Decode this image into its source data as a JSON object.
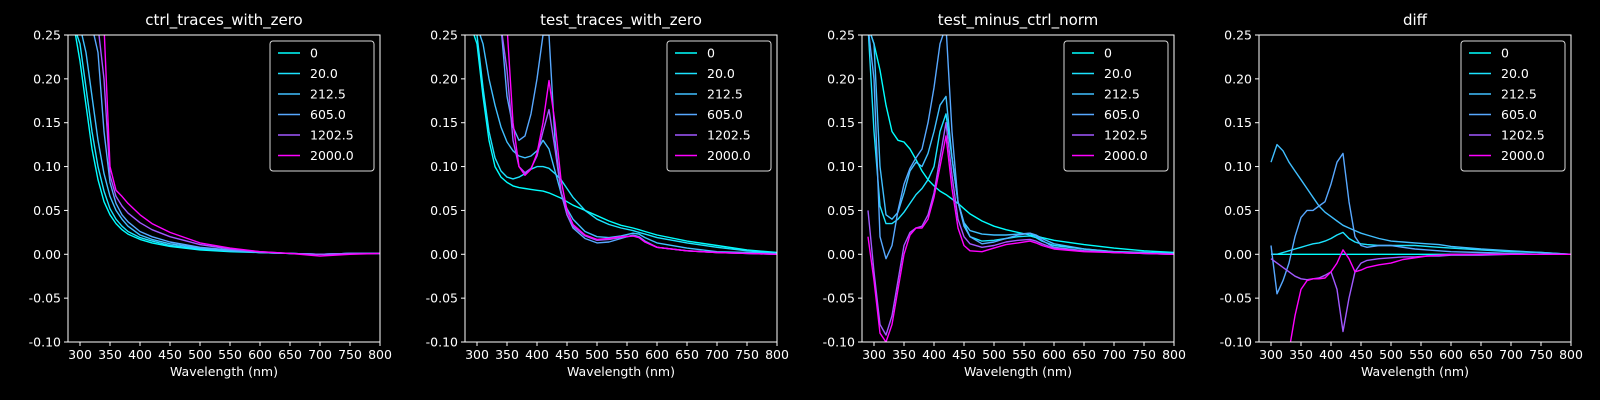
{
  "figure": {
    "background": "#000000",
    "foreground": "#ffffff"
  },
  "legend_entries": [
    "0",
    "20.0",
    "212.5",
    "605.0",
    "1202.5",
    "2000.0"
  ],
  "series_colors": [
    "#00ffff",
    "#1ce3ff",
    "#40bfff",
    "#57a8ff",
    "#a159ff",
    "#ff00ff"
  ],
  "chart_data": [
    {
      "type": "line",
      "title": "ctrl_traces_with_zero",
      "xlabel": "Wavelength (nm)",
      "ylabel": "",
      "xlim": [
        280,
        800
      ],
      "ylim": [
        -0.1,
        0.25
      ],
      "xticks": [
        300,
        350,
        400,
        450,
        500,
        550,
        600,
        650,
        700,
        750,
        800
      ],
      "yticks": [
        -0.1,
        -0.05,
        0.0,
        0.05,
        0.1,
        0.15,
        0.2,
        0.25
      ],
      "grid": false,
      "legend_position": "top-right",
      "x": [
        290,
        300,
        310,
        320,
        330,
        340,
        350,
        360,
        370,
        380,
        400,
        420,
        450,
        500,
        550,
        600,
        650,
        700,
        750,
        800
      ],
      "series": [
        {
          "name": "0",
          "values": [
            0.26,
            0.22,
            0.17,
            0.12,
            0.085,
            0.06,
            0.045,
            0.035,
            0.028,
            0.023,
            0.017,
            0.013,
            0.009,
            0.005,
            0.003,
            0.002,
            0.001,
            0.0,
            0.001,
            0.001
          ]
        },
        {
          "name": "20.0",
          "values": [
            0.26,
            0.24,
            0.19,
            0.14,
            0.1,
            0.072,
            0.052,
            0.04,
            0.032,
            0.026,
            0.019,
            0.015,
            0.01,
            0.006,
            0.004,
            0.002,
            0.001,
            0.0,
            0.001,
            0.001
          ]
        },
        {
          "name": "212.5",
          "values": [
            0.26,
            0.26,
            0.23,
            0.18,
            0.13,
            0.092,
            0.066,
            0.05,
            0.04,
            0.032,
            0.022,
            0.017,
            0.012,
            0.007,
            0.004,
            0.002,
            0.001,
            0.0,
            0.001,
            0.001
          ]
        },
        {
          "name": "605.0",
          "values": [
            0.26,
            0.26,
            0.26,
            0.26,
            0.23,
            0.14,
            0.082,
            0.058,
            0.045,
            0.037,
            0.026,
            0.02,
            0.014,
            0.008,
            0.005,
            0.002,
            0.001,
            0.0,
            0.001,
            0.001
          ]
        },
        {
          "name": "1202.5",
          "values": [
            0.26,
            0.26,
            0.26,
            0.26,
            0.26,
            0.2,
            0.09,
            0.066,
            0.055,
            0.047,
            0.036,
            0.028,
            0.02,
            0.011,
            0.006,
            0.003,
            0.001,
            0.0,
            0.001,
            0.001
          ]
        },
        {
          "name": "2000.0",
          "values": [
            0.26,
            0.26,
            0.26,
            0.26,
            0.26,
            0.26,
            0.1,
            0.073,
            0.066,
            0.058,
            0.045,
            0.035,
            0.025,
            0.013,
            0.007,
            0.003,
            0.001,
            -0.002,
            0.0,
            0.001
          ]
        }
      ]
    },
    {
      "type": "line",
      "title": "test_traces_with_zero",
      "xlabel": "Wavelength (nm)",
      "ylabel": "",
      "xlim": [
        280,
        800
      ],
      "ylim": [
        -0.1,
        0.25
      ],
      "xticks": [
        300,
        350,
        400,
        450,
        500,
        550,
        600,
        650,
        700,
        750,
        800
      ],
      "yticks": [
        -0.1,
        -0.05,
        0.0,
        0.05,
        0.1,
        0.15,
        0.2,
        0.25
      ],
      "grid": false,
      "legend_position": "top-right",
      "x": [
        290,
        300,
        310,
        320,
        330,
        340,
        350,
        360,
        370,
        380,
        390,
        400,
        410,
        420,
        430,
        440,
        450,
        460,
        480,
        500,
        520,
        540,
        560,
        570,
        580,
        600,
        650,
        700,
        750,
        800
      ],
      "series": [
        {
          "name": "0",
          "values": [
            0.26,
            0.24,
            0.18,
            0.13,
            0.1,
            0.088,
            0.082,
            0.078,
            0.076,
            0.075,
            0.074,
            0.073,
            0.072,
            0.07,
            0.067,
            0.064,
            0.06,
            0.056,
            0.05,
            0.044,
            0.038,
            0.033,
            0.03,
            0.028,
            0.026,
            0.022,
            0.015,
            0.01,
            0.005,
            0.002
          ]
        },
        {
          "name": "20.0",
          "values": [
            0.26,
            0.25,
            0.19,
            0.14,
            0.11,
            0.095,
            0.088,
            0.086,
            0.088,
            0.092,
            0.097,
            0.1,
            0.1,
            0.098,
            0.092,
            0.085,
            0.075,
            0.065,
            0.05,
            0.04,
            0.034,
            0.03,
            0.027,
            0.025,
            0.023,
            0.019,
            0.013,
            0.008,
            0.004,
            0.001
          ]
        },
        {
          "name": "212.5",
          "values": [
            0.26,
            0.26,
            0.24,
            0.2,
            0.17,
            0.145,
            0.128,
            0.118,
            0.112,
            0.11,
            0.112,
            0.118,
            0.13,
            0.12,
            0.095,
            0.07,
            0.052,
            0.04,
            0.026,
            0.02,
            0.019,
            0.021,
            0.024,
            0.023,
            0.019,
            0.013,
            0.007,
            0.003,
            0.002,
            0.001
          ]
        },
        {
          "name": "605.0",
          "values": [
            0.26,
            0.26,
            0.26,
            0.26,
            0.26,
            0.26,
            0.18,
            0.145,
            0.13,
            0.135,
            0.16,
            0.2,
            0.25,
            0.25,
            0.13,
            0.07,
            0.045,
            0.03,
            0.018,
            0.013,
            0.014,
            0.018,
            0.022,
            0.02,
            0.015,
            0.008,
            0.004,
            0.002,
            0.001,
            0.0
          ]
        },
        {
          "name": "1202.5",
          "values": [
            0.26,
            0.26,
            0.26,
            0.26,
            0.26,
            0.26,
            0.21,
            0.13,
            0.1,
            0.093,
            0.098,
            0.112,
            0.14,
            0.165,
            0.12,
            0.072,
            0.045,
            0.032,
            0.021,
            0.016,
            0.017,
            0.019,
            0.021,
            0.019,
            0.014,
            0.008,
            0.004,
            0.002,
            0.001,
            0.0
          ]
        },
        {
          "name": "2000.0",
          "values": [
            0.26,
            0.26,
            0.26,
            0.26,
            0.26,
            0.26,
            0.26,
            0.15,
            0.1,
            0.09,
            0.097,
            0.115,
            0.15,
            0.198,
            0.15,
            0.085,
            0.05,
            0.034,
            0.022,
            0.017,
            0.018,
            0.02,
            0.021,
            0.019,
            0.014,
            0.008,
            0.004,
            0.002,
            0.001,
            0.0
          ]
        }
      ]
    },
    {
      "type": "line",
      "title": "test_minus_ctrl_norm",
      "xlabel": "Wavelength (nm)",
      "ylabel": "",
      "xlim": [
        280,
        800
      ],
      "ylim": [
        -0.1,
        0.25
      ],
      "xticks": [
        300,
        350,
        400,
        450,
        500,
        550,
        600,
        650,
        700,
        750,
        800
      ],
      "yticks": [
        -0.1,
        -0.05,
        0.0,
        0.05,
        0.1,
        0.15,
        0.2,
        0.25
      ],
      "grid": false,
      "legend_position": "top-right",
      "x": [
        290,
        300,
        310,
        320,
        330,
        340,
        350,
        360,
        370,
        380,
        390,
        400,
        410,
        420,
        430,
        440,
        450,
        460,
        480,
        500,
        520,
        540,
        560,
        570,
        580,
        600,
        650,
        700,
        750,
        800
      ],
      "series": [
        {
          "name": "0",
          "values": [
            0.26,
            0.24,
            0.21,
            0.17,
            0.14,
            0.13,
            0.128,
            0.12,
            0.108,
            0.095,
            0.085,
            0.078,
            0.072,
            0.068,
            0.063,
            0.058,
            0.052,
            0.046,
            0.038,
            0.032,
            0.028,
            0.025,
            0.022,
            0.021,
            0.019,
            0.016,
            0.011,
            0.007,
            0.004,
            0.002
          ]
        },
        {
          "name": "20.0",
          "values": [
            0.26,
            0.14,
            0.055,
            0.035,
            0.035,
            0.04,
            0.048,
            0.058,
            0.068,
            0.075,
            0.085,
            0.1,
            0.14,
            0.16,
            0.11,
            0.06,
            0.035,
            0.02,
            0.015,
            0.016,
            0.018,
            0.02,
            0.021,
            0.019,
            0.015,
            0.01,
            0.006,
            0.003,
            0.002,
            0.001
          ]
        },
        {
          "name": "212.5",
          "values": [
            0.26,
            0.24,
            0.1,
            0.045,
            0.04,
            0.048,
            0.07,
            0.095,
            0.105,
            0.1,
            0.115,
            0.14,
            0.17,
            0.18,
            0.11,
            0.06,
            0.036,
            0.027,
            0.023,
            0.022,
            0.022,
            0.023,
            0.024,
            0.022,
            0.018,
            0.012,
            0.006,
            0.003,
            0.002,
            0.001
          ]
        },
        {
          "name": "605.0",
          "values": [
            0.26,
            0.2,
            0.02,
            -0.005,
            0.01,
            0.05,
            0.08,
            0.098,
            0.11,
            0.12,
            0.15,
            0.19,
            0.24,
            0.26,
            0.14,
            0.06,
            0.032,
            0.02,
            0.012,
            0.014,
            0.018,
            0.022,
            0.024,
            0.021,
            0.016,
            0.008,
            0.004,
            0.002,
            0.001,
            0.0
          ]
        },
        {
          "name": "1202.5",
          "values": [
            0.05,
            -0.02,
            -0.08,
            -0.092,
            -0.07,
            -0.03,
            0.01,
            0.025,
            0.03,
            0.032,
            0.045,
            0.07,
            0.11,
            0.15,
            0.09,
            0.04,
            0.02,
            0.012,
            0.008,
            0.01,
            0.014,
            0.016,
            0.017,
            0.015,
            0.012,
            0.007,
            0.004,
            0.002,
            0.001,
            0.0
          ]
        },
        {
          "name": "2000.0",
          "values": [
            0.02,
            -0.03,
            -0.09,
            -0.1,
            -0.08,
            -0.04,
            0.0,
            0.022,
            0.03,
            0.03,
            0.04,
            0.065,
            0.1,
            0.135,
            0.075,
            0.03,
            0.01,
            0.004,
            0.003,
            0.007,
            0.011,
            0.013,
            0.015,
            0.013,
            0.01,
            0.006,
            0.003,
            0.002,
            0.001,
            0.0
          ]
        }
      ]
    },
    {
      "type": "line",
      "title": "diff",
      "xlabel": "Wavelength (nm)",
      "ylabel": "",
      "xlim": [
        280,
        800
      ],
      "ylim": [
        -0.1,
        0.25
      ],
      "xticks": [
        300,
        350,
        400,
        450,
        500,
        550,
        600,
        650,
        700,
        750,
        800
      ],
      "yticks": [
        -0.1,
        -0.05,
        0.0,
        0.05,
        0.1,
        0.15,
        0.2,
        0.25
      ],
      "grid": false,
      "legend_position": "top-right",
      "x": [
        300,
        310,
        320,
        330,
        340,
        350,
        360,
        370,
        380,
        390,
        400,
        410,
        420,
        430,
        440,
        450,
        460,
        480,
        500,
        520,
        540,
        560,
        580,
        600,
        650,
        700,
        750,
        800
      ],
      "series": [
        {
          "name": "0",
          "values": [
            0.0,
            0.0,
            0.0,
            0.0,
            0.0,
            0.0,
            0.0,
            0.0,
            0.0,
            0.0,
            0.0,
            0.0,
            0.0,
            0.0,
            0.0,
            0.0,
            0.0,
            0.0,
            0.0,
            0.0,
            0.0,
            0.0,
            0.0,
            0.0,
            0.0,
            0.0,
            0.0,
            0.0
          ]
        },
        {
          "name": "20.0",
          "values": [
            0.0,
            0.0,
            0.002,
            0.004,
            0.006,
            0.008,
            0.01,
            0.012,
            0.013,
            0.015,
            0.018,
            0.022,
            0.025,
            0.018,
            0.014,
            0.012,
            0.011,
            0.01,
            0.01,
            0.01,
            0.01,
            0.009,
            0.008,
            0.007,
            0.005,
            0.003,
            0.002,
            0.0
          ]
        },
        {
          "name": "212.5",
          "values": [
            0.105,
            0.125,
            0.118,
            0.105,
            0.095,
            0.085,
            0.075,
            0.065,
            0.055,
            0.048,
            0.043,
            0.038,
            0.033,
            0.03,
            0.027,
            0.024,
            0.022,
            0.018,
            0.015,
            0.014,
            0.013,
            0.012,
            0.011,
            0.009,
            0.006,
            0.004,
            0.002,
            0.0
          ]
        },
        {
          "name": "605.0",
          "values": [
            0.01,
            -0.045,
            -0.03,
            -0.01,
            0.02,
            0.042,
            0.05,
            0.05,
            0.055,
            0.06,
            0.08,
            0.105,
            0.115,
            0.06,
            0.02,
            0.01,
            0.008,
            0.01,
            0.01,
            0.008,
            0.006,
            0.005,
            0.004,
            0.003,
            0.002,
            0.001,
            0.0,
            0.0
          ]
        },
        {
          "name": "1202.5",
          "values": [
            -0.005,
            -0.01,
            -0.015,
            -0.02,
            -0.025,
            -0.028,
            -0.029,
            -0.028,
            -0.027,
            -0.024,
            -0.02,
            -0.04,
            -0.088,
            -0.05,
            -0.02,
            -0.01,
            -0.007,
            -0.005,
            -0.004,
            -0.003,
            -0.003,
            -0.002,
            -0.002,
            -0.001,
            -0.001,
            0.0,
            0.0,
            0.0
          ]
        },
        {
          "name": "2000.0",
          "values": [
            -0.12,
            -0.12,
            -0.12,
            -0.11,
            -0.07,
            -0.04,
            -0.03,
            -0.028,
            -0.028,
            -0.027,
            -0.02,
            -0.01,
            0.005,
            -0.005,
            -0.02,
            -0.018,
            -0.015,
            -0.012,
            -0.01,
            -0.006,
            -0.004,
            -0.002,
            -0.001,
            0.0,
            0.0,
            0.0,
            0.0,
            0.0
          ]
        }
      ]
    }
  ]
}
